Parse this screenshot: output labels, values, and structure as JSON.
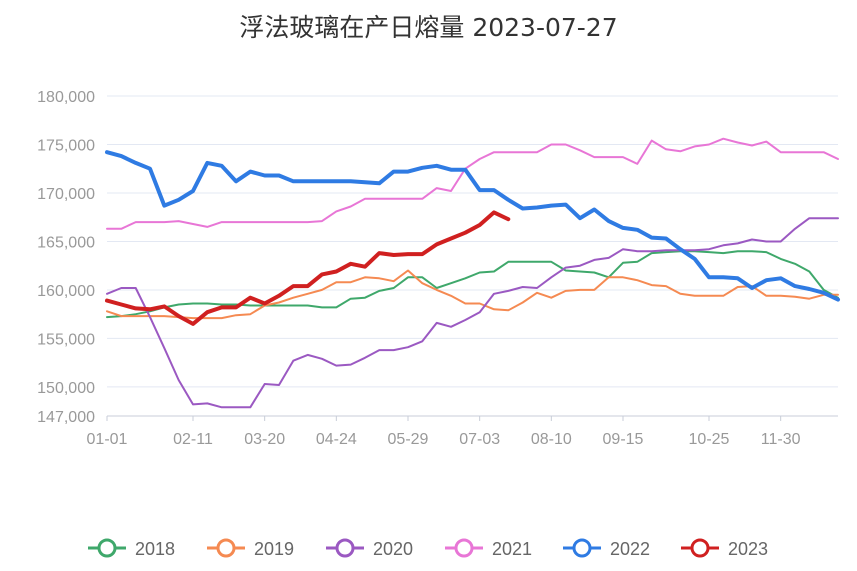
{
  "chart_data": {
    "type": "line",
    "title": "浮法玻璃在产日熔量 2023-07-27",
    "xlabel": "",
    "ylabel": "",
    "ylim": [
      147000,
      180000
    ],
    "y_ticks": [
      "180,000",
      "175,000",
      "170,000",
      "165,000",
      "160,000",
      "155,000",
      "150,000",
      "147,000"
    ],
    "y_tick_values": [
      180000,
      175000,
      170000,
      165000,
      160000,
      155000,
      150000,
      147000
    ],
    "x_ticks": [
      "01-01",
      "02-11",
      "03-20",
      "04-24",
      "05-29",
      "07-03",
      "08-10",
      "09-15",
      "10-25",
      "11-30"
    ],
    "x_tick_index": [
      0,
      6,
      11,
      16,
      21,
      26,
      31,
      36,
      42,
      47
    ],
    "n_points": 52,
    "grid": true,
    "legend_position": "bottom",
    "series": [
      {
        "name": "2018",
        "color": "#3fa86b",
        "bold": false,
        "values": [
          157200,
          157300,
          157500,
          157800,
          158200,
          158500,
          158600,
          158600,
          158500,
          158500,
          158400,
          158400,
          158400,
          158400,
          158400,
          158200,
          158200,
          159100,
          159200,
          159900,
          160200,
          161300,
          161300,
          160200,
          160700,
          161200,
          161800,
          161900,
          162900,
          162900,
          162900,
          162900,
          162000,
          161900,
          161800,
          161300,
          162800,
          162900,
          163800,
          163900,
          164000,
          164000,
          163900,
          163800,
          164000,
          164000,
          163900,
          163200,
          162700,
          161900,
          160000,
          159200
        ]
      },
      {
        "name": "2019",
        "color": "#f58a52",
        "bold": false,
        "values": [
          157800,
          157300,
          157300,
          157300,
          157300,
          157200,
          157100,
          157100,
          157100,
          157400,
          157500,
          158400,
          158700,
          159200,
          159600,
          160000,
          160800,
          160800,
          161300,
          161200,
          160900,
          162000,
          160700,
          160000,
          159400,
          158600,
          158600,
          158000,
          157900,
          158700,
          159700,
          159200,
          159900,
          160000,
          160000,
          161300,
          161300,
          161000,
          160500,
          160400,
          159600,
          159400,
          159400,
          159400,
          160300,
          160400,
          159400,
          159400,
          159300,
          159100,
          159500,
          159500
        ]
      },
      {
        "name": "2020",
        "color": "#9b59c2",
        "bold": false,
        "values": [
          159600,
          160200,
          160200,
          157200,
          154000,
          150700,
          148200,
          148300,
          147900,
          147900,
          147900,
          150300,
          150200,
          152700,
          153300,
          152900,
          152200,
          152300,
          153000,
          153800,
          153800,
          154100,
          154700,
          156600,
          156200,
          156900,
          157700,
          159600,
          159900,
          160300,
          160200,
          161300,
          162300,
          162500,
          163100,
          163300,
          164200,
          164000,
          164000,
          164100,
          164100,
          164100,
          164200,
          164600,
          164800,
          165200,
          165000,
          165000,
          166300,
          167400,
          167400,
          167400
        ]
      },
      {
        "name": "2021",
        "color": "#e876d6",
        "bold": false,
        "values": [
          166300,
          166300,
          167000,
          167000,
          167000,
          167100,
          166800,
          166500,
          167000,
          167000,
          167000,
          167000,
          167000,
          167000,
          167000,
          167100,
          168100,
          168600,
          169400,
          169400,
          169400,
          169400,
          169400,
          170500,
          170200,
          172500,
          173500,
          174200,
          174200,
          174200,
          174200,
          175000,
          175000,
          174400,
          173700,
          173700,
          173700,
          173000,
          175400,
          174500,
          174300,
          174800,
          175000,
          175600,
          175200,
          174900,
          175300,
          174200,
          174200,
          174200,
          174200,
          173500
        ]
      },
      {
        "name": "2022",
        "color": "#2f7be3",
        "bold": true,
        "values": [
          174200,
          173800,
          173100,
          172500,
          168700,
          169300,
          170200,
          173100,
          172800,
          171200,
          172200,
          171800,
          171800,
          171200,
          171200,
          171200,
          171200,
          171200,
          171100,
          171000,
          172200,
          172200,
          172600,
          172800,
          172400,
          172400,
          170300,
          170300,
          169300,
          168400,
          168500,
          168700,
          168800,
          167400,
          168300,
          167100,
          166400,
          166200,
          165400,
          165300,
          164200,
          163200,
          161300,
          161300,
          161200,
          160200,
          161000,
          161200,
          160400,
          160100,
          159700,
          159000
        ]
      },
      {
        "name": "2023",
        "color": "#d02020",
        "bold": true,
        "values": [
          158900,
          158500,
          158100,
          158000,
          158300,
          157300,
          156500,
          157700,
          158200,
          158200,
          159200,
          158600,
          159400,
          160400,
          160400,
          161600,
          161900,
          162700,
          162400,
          163800,
          163600,
          163700,
          163700,
          164700,
          165300,
          165900,
          166700,
          168000,
          167300
        ]
      }
    ]
  }
}
